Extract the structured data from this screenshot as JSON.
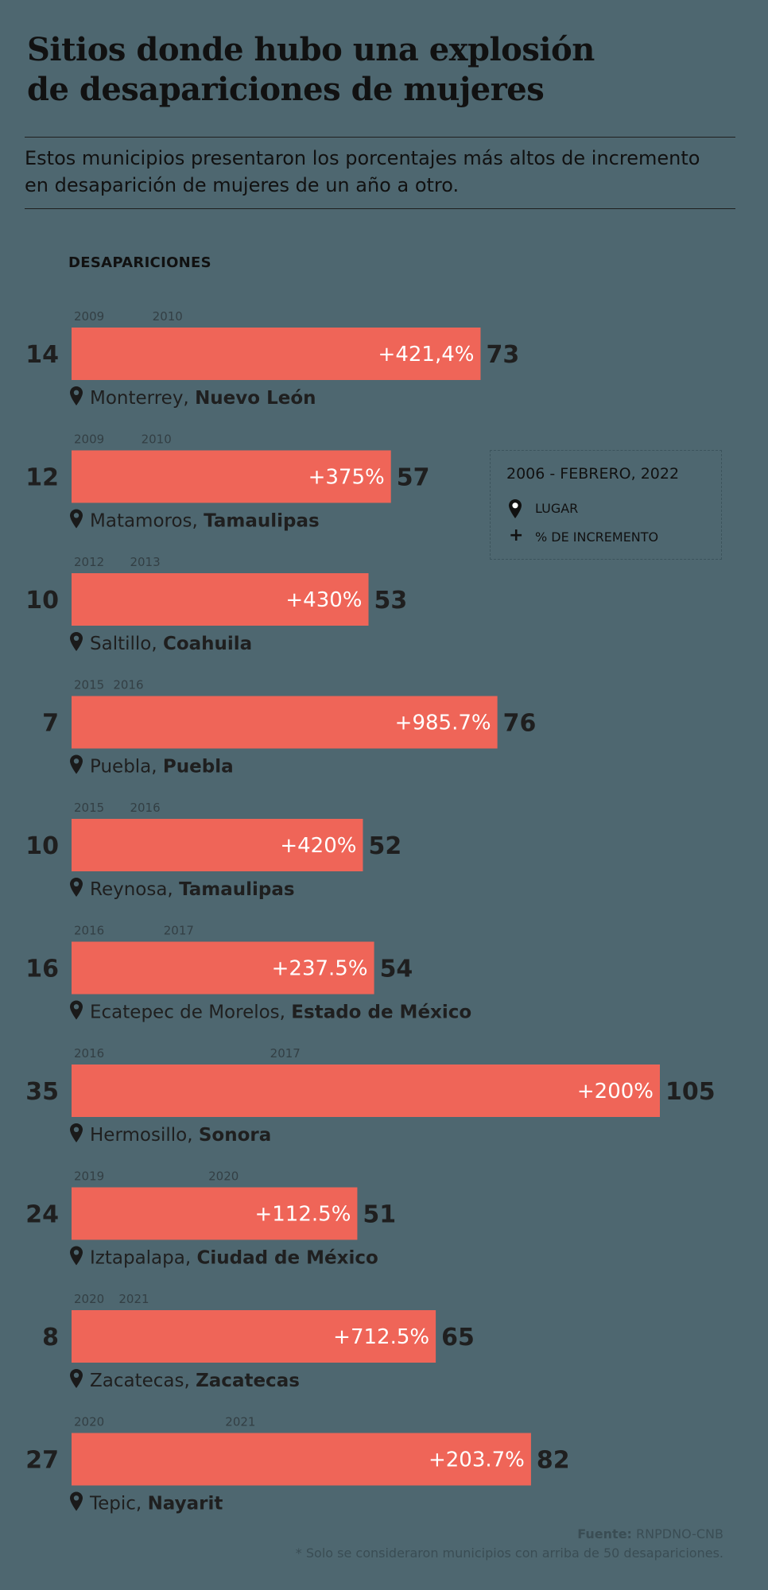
{
  "header": {
    "title_line1": "Sitios donde hubo una explosión",
    "title_line2": "de desapariciones de mujeres",
    "subtitle_line1": "Estos municipios presentaron los porcentajes más altos de incremento",
    "subtitle_line2": "en desaparición de mujeres de un año a otro."
  },
  "legend": {
    "period": "2006 - FEBRERO, 2022",
    "place_label": "LUGAR",
    "increase_label": "% DE INCREMENTO"
  },
  "footer": {
    "source_label": "Fuente:",
    "source": "RNPDNO-CNB",
    "note": "* Solo se consideraron municipios con arriba de 50 desapariciones."
  },
  "colors": {
    "background": "#4e6770",
    "bar": "#ef6558",
    "text": "#1f1f1f"
  },
  "chart_data": {
    "type": "bar",
    "ylabel": "DESAPARICIONES",
    "xlim": [
      0,
      105
    ],
    "rows": [
      {
        "city": "Monterrey",
        "state": "Nuevo León",
        "year_from": "2009",
        "year_to": "2010",
        "value_from": 14,
        "value_to": 73,
        "increase": "+421,4%"
      },
      {
        "city": "Matamoros",
        "state": "Tamaulipas",
        "year_from": "2009",
        "year_to": "2010",
        "value_from": 12,
        "value_to": 57,
        "increase": "+375%"
      },
      {
        "city": "Saltillo",
        "state": "Coahuila",
        "year_from": "2012",
        "year_to": "2013",
        "value_from": 10,
        "value_to": 53,
        "increase": "+430%"
      },
      {
        "city": "Puebla",
        "state": "Puebla",
        "year_from": "2015",
        "year_to": "2016",
        "value_from": 7,
        "value_to": 76,
        "increase": "+985.7%"
      },
      {
        "city": "Reynosa",
        "state": "Tamaulipas",
        "year_from": "2015",
        "year_to": "2016",
        "value_from": 10,
        "value_to": 52,
        "increase": "+420%"
      },
      {
        "city": "Ecatepec de Morelos",
        "state": "Estado de México",
        "year_from": "2016",
        "year_to": "2017",
        "value_from": 16,
        "value_to": 54,
        "increase": "+237.5%"
      },
      {
        "city": "Hermosillo",
        "state": "Sonora",
        "year_from": "2016",
        "year_to": "2017",
        "value_from": 35,
        "value_to": 105,
        "increase": "+200%"
      },
      {
        "city": "Iztapalapa",
        "state": "Ciudad de México",
        "year_from": "2019",
        "year_to": "2020",
        "value_from": 24,
        "value_to": 51,
        "increase": "+112.5%"
      },
      {
        "city": "Zacatecas",
        "state": "Zacatecas",
        "year_from": "2020",
        "year_to": "2021",
        "value_from": 8,
        "value_to": 65,
        "increase": "+712.5%"
      },
      {
        "city": "Tepic",
        "state": "Nayarit",
        "year_from": "2020",
        "year_to": "2021",
        "value_from": 27,
        "value_to": 82,
        "increase": "+203.7%"
      }
    ]
  }
}
